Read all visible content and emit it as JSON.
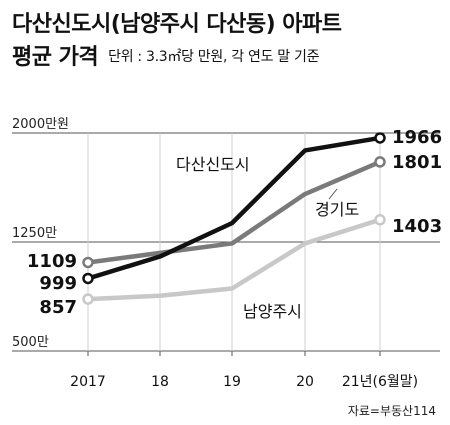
{
  "title": "다산신도시(남양주시 다산동) 아파트",
  "title2": "평균 가격",
  "subtitle": "단위 : 3.3㎡당 만원, 각 연도 말 기준",
  "source": "자료=부동산114",
  "chart_data": {
    "type": "line",
    "categories": [
      "2017",
      "18",
      "19",
      "20",
      "21년(6월말)"
    ],
    "ylim": [
      500,
      2000
    ],
    "yticks": [
      {
        "value": 2000,
        "label": "2000만원"
      },
      {
        "value": 1250,
        "label": "1250만"
      },
      {
        "value": 500,
        "label": "500만"
      }
    ],
    "grid": true,
    "series": [
      {
        "name": "다산신도시",
        "color": "#111111",
        "values": [
          999,
          1150,
          1380,
          1880,
          1966
        ],
        "start_label": "999",
        "end_label": "1966"
      },
      {
        "name": "경기도",
        "color": "#7a7a7a",
        "values": [
          1109,
          1175,
          1240,
          1580,
          1801
        ],
        "start_label": "1109",
        "end_label": "1801"
      },
      {
        "name": "남양주시",
        "color": "#c8c8c8",
        "values": [
          857,
          880,
          930,
          1240,
          1403
        ],
        "start_label": "857",
        "end_label": "1403"
      }
    ]
  }
}
